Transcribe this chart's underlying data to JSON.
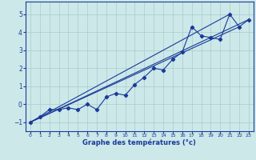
{
  "xlabel": "Graphe des températures (°c)",
  "xlim": [
    -0.5,
    23.5
  ],
  "ylim": [
    -1.5,
    5.7
  ],
  "yticks": [
    -1,
    0,
    1,
    2,
    3,
    4,
    5
  ],
  "xticks": [
    0,
    1,
    2,
    3,
    4,
    5,
    6,
    7,
    8,
    9,
    10,
    11,
    12,
    13,
    14,
    15,
    16,
    17,
    18,
    19,
    20,
    21,
    22,
    23
  ],
  "bg_color": "#cce8e8",
  "grid_color": "#aacccc",
  "line_color": "#1a3a9a",
  "line1": {
    "x": [
      0,
      1,
      2,
      3,
      4,
      5,
      6,
      7,
      8,
      9,
      10,
      11,
      12,
      13,
      14,
      15,
      16,
      17,
      18,
      19,
      20,
      21,
      22,
      23
    ],
    "y": [
      -1.0,
      -0.7,
      -0.3,
      -0.3,
      -0.2,
      -0.3,
      0.0,
      -0.3,
      0.4,
      0.6,
      0.5,
      1.1,
      1.5,
      2.0,
      1.9,
      2.5,
      2.9,
      4.3,
      3.8,
      3.7,
      3.6,
      5.0,
      4.3,
      4.7
    ]
  },
  "line2": {
    "x": [
      0,
      21
    ],
    "y": [
      -1.0,
      5.0
    ]
  },
  "line3": {
    "x": [
      0,
      23
    ],
    "y": [
      -1.0,
      4.7
    ]
  },
  "line4": {
    "x": [
      0,
      22
    ],
    "y": [
      -1.0,
      4.3
    ]
  }
}
